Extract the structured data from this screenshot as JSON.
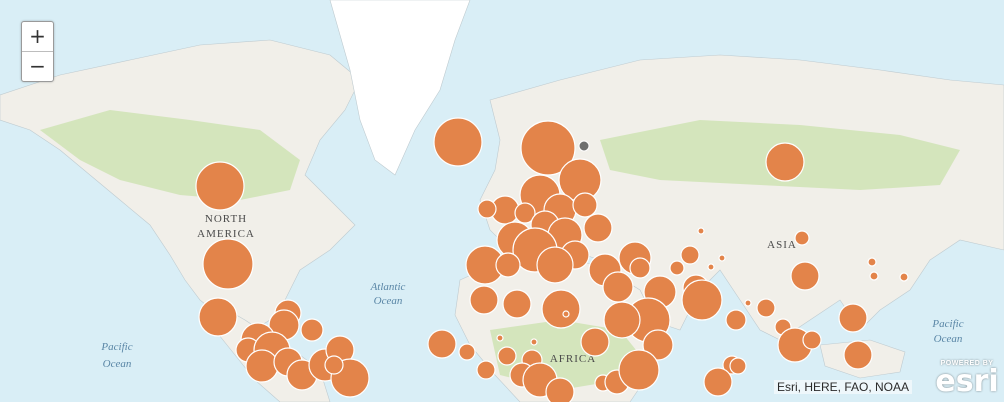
{
  "controls": {
    "zoom_in_label": "+",
    "zoom_out_label": "−"
  },
  "map_labels": {
    "north_america_line1": "NORTH",
    "north_america_line2": "AMERICA",
    "asia": "ASIA",
    "africa": "AFRICA",
    "atlantic_line1": "Atlantic",
    "atlantic_line2": "Ocean",
    "pacific_west_line1": "Pacific",
    "pacific_west_line2": "Ocean",
    "pacific_east_line1": "Pacific",
    "pacific_east_line2": "Ocean"
  },
  "attribution": "Esri, HERE, FAO, NOAA",
  "logo": {
    "powered_by": "POWERED BY",
    "word": "esri"
  },
  "colors": {
    "ocean": "#d9eef6",
    "land": "#f1efe9",
    "vegetation": "#cfe3b4",
    "ice": "#ffffff",
    "marker": "#e3844a",
    "marker_stroke": "#ffffff",
    "marker_gray": "#6f6f6f"
  }
}
